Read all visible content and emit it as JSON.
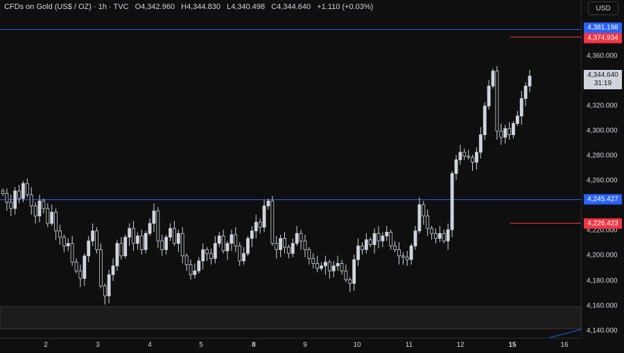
{
  "header": {
    "symbol": "CFDs on Gold (US$ / OZ) · 1h · TVC",
    "open": "O4,342.960",
    "high": "H4,344.830",
    "low": "L4,340.498",
    "close": "C4,344.640",
    "change": "+1.110 (+0.03%)"
  },
  "currency_button": "USD",
  "price_axis": {
    "ticks": [
      "4,360.000",
      "4,320.000",
      "4,300.000",
      "4,280.000",
      "4,260.000",
      "4,220.000",
      "4,200.000",
      "4,180.000",
      "4,160.000",
      "4,140.000"
    ],
    "tick_values": [
      4360,
      4320,
      4300,
      4280,
      4260,
      4220,
      4200,
      4180,
      4160,
      4140
    ]
  },
  "markers": {
    "top_blue": "4,381.198",
    "top_red": "4,374.934",
    "mid_blue": "4,245.427",
    "low_red": "4,226.423",
    "last_price": "4,344.640",
    "countdown": "31:19"
  },
  "time_axis": [
    "2",
    "3",
    "4",
    "5",
    "8",
    "9",
    "10",
    "11",
    "12",
    "15",
    "16"
  ],
  "colors": {
    "background": "#0f0f0f",
    "candle": "#d1d4dc",
    "level_blue": "#2962ff",
    "level_red": "#f23645",
    "zone": "#1c1c1c"
  },
  "chart_data": {
    "type": "candlestick",
    "title": "CFDs on Gold (US$ / OZ)",
    "interval": "1h",
    "ylim": [
      4130,
      4390
    ],
    "horizontal_levels": [
      4381.198,
      4374.934,
      4245.427,
      4226.423
    ],
    "zone": [
      4140,
      4160
    ],
    "closes": [
      4250,
      4243,
      4238,
      4252,
      4246,
      4258,
      4249,
      4240,
      4232,
      4244,
      4238,
      4226,
      4235,
      4220,
      4215,
      4208,
      4210,
      4195,
      4188,
      4182,
      4200,
      4212,
      4220,
      4205,
      4176,
      4168,
      4185,
      4192,
      4210,
      4200,
      4215,
      4222,
      4210,
      4216,
      4205,
      4218,
      4226,
      4236,
      4212,
      4205,
      4215,
      4222,
      4210,
      4218,
      4200,
      4193,
      4185,
      4188,
      4196,
      4205,
      4202,
      4198,
      4210,
      4216,
      4204,
      4210,
      4217,
      4208,
      4196,
      4202,
      4214,
      4220,
      4227,
      4223,
      4240,
      4244,
      4210,
      4205,
      4214,
      4207,
      4202,
      4210,
      4218,
      4212,
      4205,
      4198,
      4194,
      4190,
      4192,
      4195,
      4188,
      4192,
      4194,
      4188,
      4181,
      4178,
      4197,
      4208,
      4205,
      4213,
      4209,
      4218,
      4212,
      4216,
      4219,
      4208,
      4205,
      4200,
      4199,
      4197,
      4208,
      4220,
      4241,
      4232,
      4222,
      4218,
      4214,
      4218,
      4212,
      4221,
      4266,
      4277,
      4283,
      4280,
      4279,
      4275,
      4283,
      4297,
      4320,
      4336,
      4348,
      4300,
      4295,
      4302,
      4297,
      4306,
      4312,
      4326,
      4336,
      4344
    ]
  }
}
